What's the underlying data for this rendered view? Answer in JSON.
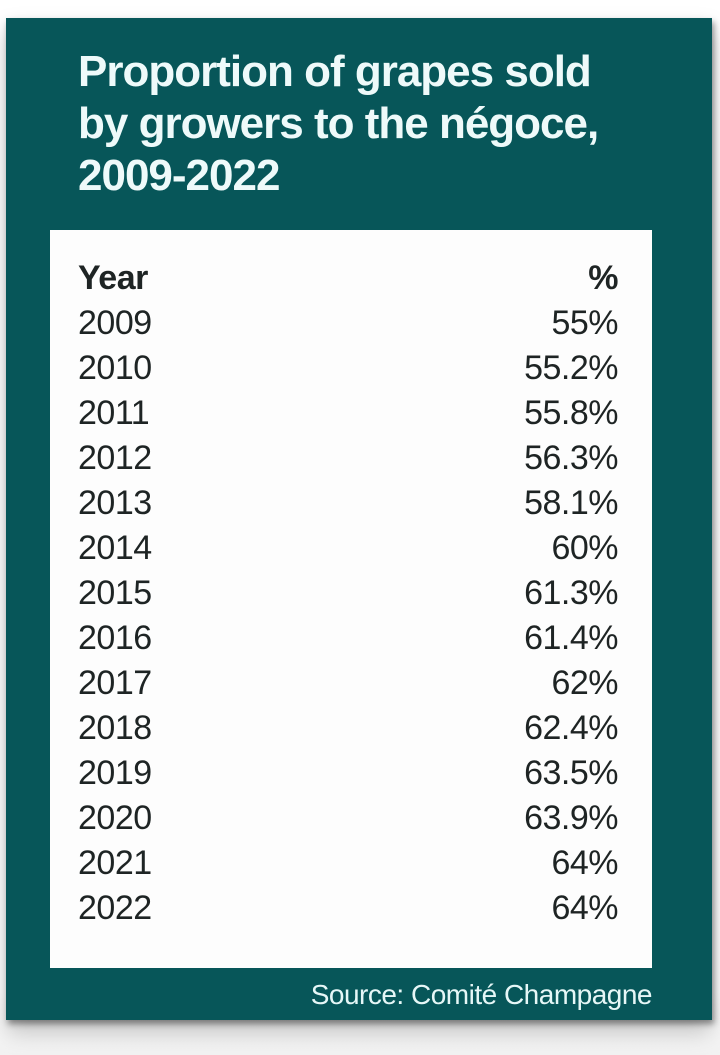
{
  "colors": {
    "card_background": "#075659",
    "title_text": "#eefafa",
    "panel_background": "#fdfdfd",
    "table_text": "#1e2424",
    "source_text": "#e6f7f7"
  },
  "title": {
    "lines": [
      "Proportion of grapes sold",
      "by growers to the négoce,",
      "2009-2022"
    ]
  },
  "chart_data": {
    "type": "table",
    "title": "Proportion of grapes sold by growers to the négoce, 2009-2022",
    "columns": [
      "Year",
      "%"
    ],
    "rows": [
      {
        "year": "2009",
        "pct": "55%"
      },
      {
        "year": "2010",
        "pct": "55.2%"
      },
      {
        "year": "2011",
        "pct": "55.8%"
      },
      {
        "year": "2012",
        "pct": "56.3%"
      },
      {
        "year": "2013",
        "pct": "58.1%"
      },
      {
        "year": "2014",
        "pct": "60%"
      },
      {
        "year": "2015",
        "pct": "61.3%"
      },
      {
        "year": "2016",
        "pct": "61.4%"
      },
      {
        "year": "2017",
        "pct": "62%"
      },
      {
        "year": "2018",
        "pct": "62.4%"
      },
      {
        "year": "2019",
        "pct": "63.5%"
      },
      {
        "year": "2020",
        "pct": "63.9%"
      },
      {
        "year": "2021",
        "pct": "64%"
      },
      {
        "year": "2022",
        "pct": "64%"
      }
    ],
    "source": "Source: Comité Champagne"
  }
}
